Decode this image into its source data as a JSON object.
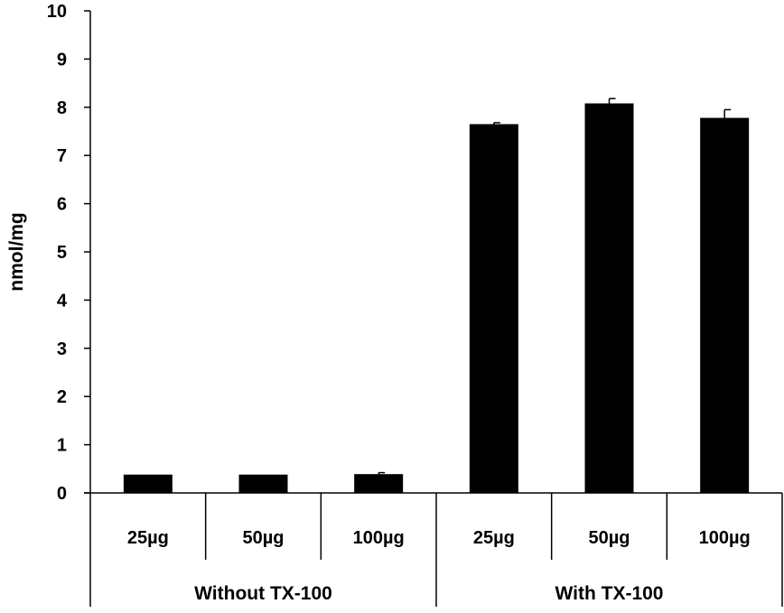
{
  "chart_data": {
    "type": "bar",
    "title": "",
    "xlabel": "",
    "ylabel": "nmol/mg",
    "ylim": [
      0,
      10
    ],
    "yticks": [
      0,
      1,
      2,
      3,
      4,
      5,
      6,
      7,
      8,
      9,
      10
    ],
    "grid": false,
    "categories": [
      "25µg",
      "50µg",
      "100µg",
      "25µg",
      "50µg",
      "100µg"
    ],
    "groups": [
      {
        "label": "Without TX-100",
        "span": [
          0,
          2
        ]
      },
      {
        "label": "With TX-100",
        "span": [
          3,
          5
        ]
      }
    ],
    "values": [
      0.38,
      0.38,
      0.39,
      7.65,
      8.08,
      7.78
    ],
    "errors": [
      0.0,
      0.0,
      0.03,
      0.03,
      0.1,
      0.17
    ],
    "bar_color": "#000000"
  }
}
